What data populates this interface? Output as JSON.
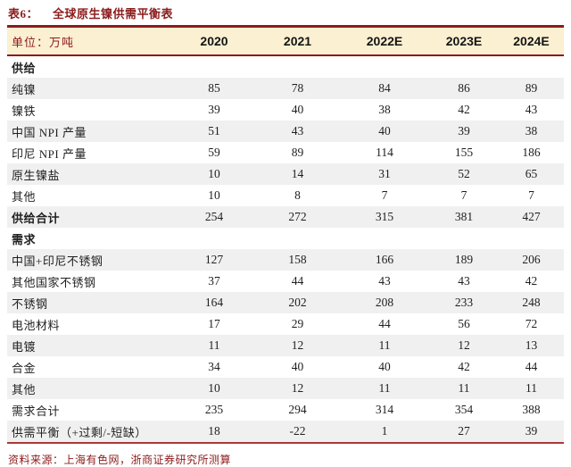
{
  "title": {
    "tag": "表6：",
    "text": "全球原生镍供需平衡表"
  },
  "table": {
    "unit_label": "单位：万吨",
    "columns": [
      "2020",
      "2021",
      "2022E",
      "2023E",
      "2024E"
    ],
    "rows": [
      {
        "label": "供给",
        "values": [],
        "bold": true,
        "shade": false
      },
      {
        "label": "纯镍",
        "values": [
          85,
          78,
          84,
          86,
          89
        ],
        "bold": false,
        "shade": true
      },
      {
        "label": "镍铁",
        "values": [
          39,
          40,
          38,
          42,
          43
        ],
        "bold": false,
        "shade": false
      },
      {
        "label": "中国 NPI 产量",
        "values": [
          51,
          43,
          40,
          39,
          38
        ],
        "bold": false,
        "shade": true
      },
      {
        "label": "印尼 NPI 产量",
        "values": [
          59,
          89,
          114,
          155,
          186
        ],
        "bold": false,
        "shade": false
      },
      {
        "label": "原生镍盐",
        "values": [
          10,
          14,
          31,
          52,
          65
        ],
        "bold": false,
        "shade": true
      },
      {
        "label": "其他",
        "values": [
          10,
          8,
          7,
          7,
          7
        ],
        "bold": false,
        "shade": false
      },
      {
        "label": "供给合计",
        "values": [
          254,
          272,
          315,
          381,
          427
        ],
        "bold": true,
        "shade": true
      },
      {
        "label": "需求",
        "values": [],
        "bold": true,
        "shade": false
      },
      {
        "label": "中国+印尼不锈钢",
        "values": [
          127,
          158,
          166,
          189,
          206
        ],
        "bold": false,
        "shade": true
      },
      {
        "label": "其他国家不锈钢",
        "values": [
          37,
          44,
          43,
          43,
          42
        ],
        "bold": false,
        "shade": false
      },
      {
        "label": "不锈钢",
        "values": [
          164,
          202,
          208,
          233,
          248
        ],
        "bold": false,
        "shade": true
      },
      {
        "label": "电池材料",
        "values": [
          17,
          29,
          44,
          56,
          72
        ],
        "bold": false,
        "shade": false
      },
      {
        "label": "电镀",
        "values": [
          11,
          12,
          11,
          12,
          13
        ],
        "bold": false,
        "shade": true
      },
      {
        "label": "合金",
        "values": [
          34,
          40,
          40,
          42,
          44
        ],
        "bold": false,
        "shade": false
      },
      {
        "label": "其他",
        "values": [
          10,
          12,
          11,
          11,
          11
        ],
        "bold": false,
        "shade": true
      },
      {
        "label": "需求合计",
        "values": [
          235,
          294,
          314,
          354,
          388
        ],
        "bold": false,
        "shade": false
      },
      {
        "label": "供需平衡（+过剩/-短缺）",
        "values": [
          18,
          -22,
          1,
          27,
          39
        ],
        "bold": false,
        "shade": true
      }
    ]
  },
  "source": "资料来源：上海有色网，浙商证券研究所测算",
  "colors": {
    "accent_maroon": "#8C1B1B",
    "header_bg": "#FBF0D1",
    "shade_row_bg": "#F0F0F0",
    "bottom_rule": "#A93939",
    "body_text": "#1F1F1F"
  }
}
